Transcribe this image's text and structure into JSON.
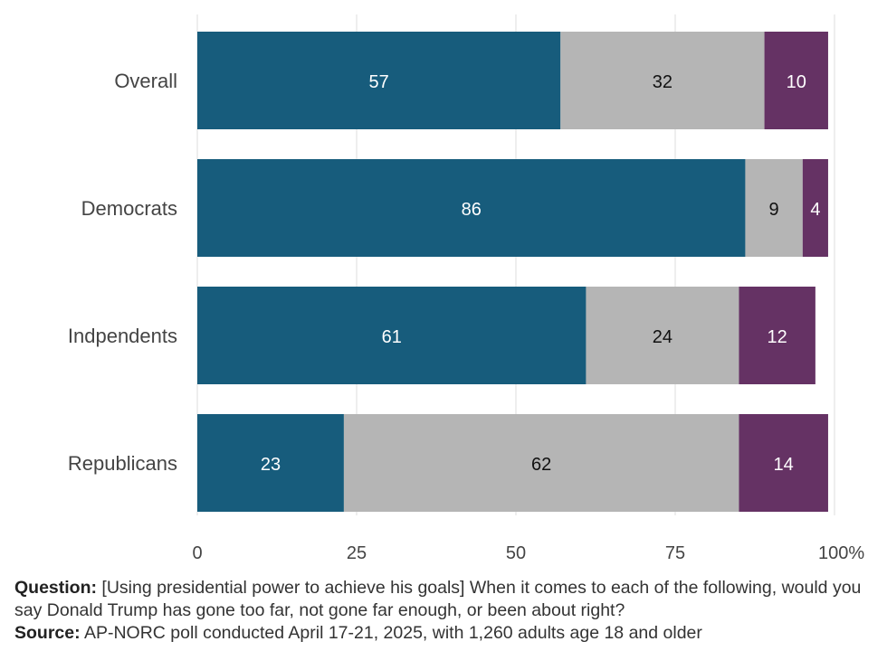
{
  "chart_data": {
    "type": "bar",
    "orientation": "horizontal",
    "stacked": true,
    "categories": [
      "Overall",
      "Democrats",
      "Indpendents",
      "Republicans"
    ],
    "series": [
      {
        "values": [
          57,
          86,
          61,
          23
        ],
        "color": "#175c7c",
        "label_color": "#ffffff"
      },
      {
        "values": [
          32,
          9,
          24,
          62
        ],
        "color": "#b5b5b5",
        "label_color": "#111111"
      },
      {
        "values": [
          10,
          4,
          12,
          14
        ],
        "color": "#653264",
        "label_color": "#ffffff"
      }
    ],
    "xlim": [
      0,
      100
    ],
    "xticks": [
      0,
      25,
      50,
      75,
      100
    ],
    "xtick_labels": [
      "0",
      "25",
      "50",
      "75",
      "100%"
    ],
    "grid": "vertical"
  },
  "notes": {
    "question_label": "Question:",
    "question_text": "[Using presidential power to achieve his goals] When it comes to each of the following, would you say Donald Trump has gone too far, not gone far enough, or been about right?",
    "source_label": "Source:",
    "source_text": "AP-NORC poll conducted April 17-21, 2025, with 1,260 adults age 18 and older"
  }
}
